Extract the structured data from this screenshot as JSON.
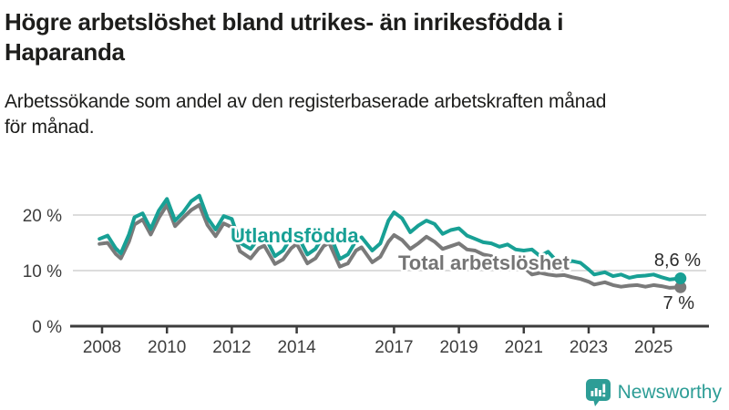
{
  "header": {
    "title": "Högre arbetslöshet bland utrikes- än inrikesfödda i Haparanda",
    "subtitle": "Arbetssökande som andel av den registerbaserade arbetskraften månad för månad."
  },
  "chart_data": {
    "type": "line",
    "title": "Högre arbetslöshet bland utrikes- än inrikesfödda i Haparanda",
    "subtitle": "Arbetssökande som andel av den registerbaserade arbetskraften månad för månad.",
    "grid": "horizontal",
    "legend": "inline-labels",
    "x_axis": {
      "tick_labels": [
        "2008",
        "2010",
        "2012",
        "2014",
        "2017",
        "2019",
        "2021",
        "2023",
        "2025"
      ],
      "tick_values": [
        2008,
        2010,
        2012,
        2014,
        2017,
        2019,
        2021,
        2023,
        2025
      ],
      "range": [
        2007.9,
        2026.3
      ]
    },
    "y_axis": {
      "tick_labels": [
        "0 %",
        "10 %",
        "20 %"
      ],
      "tick_values": [
        0,
        10,
        20
      ],
      "unit": "% av arbetskraften",
      "range": [
        0,
        27
      ]
    },
    "resolution": "monthly series, values read at ~quarterly anchors",
    "x": [
      2007.92,
      2008.17,
      2008.42,
      2008.58,
      2008.83,
      2009.0,
      2009.25,
      2009.5,
      2009.75,
      2010.0,
      2010.25,
      2010.5,
      2010.75,
      2011.0,
      2011.25,
      2011.5,
      2011.75,
      2012.0,
      2012.25,
      2012.58,
      2012.83,
      2013.0,
      2013.33,
      2013.58,
      2013.83,
      2014.0,
      2014.33,
      2014.58,
      2014.83,
      2015.0,
      2015.33,
      2015.58,
      2015.83,
      2016.0,
      2016.33,
      2016.58,
      2016.83,
      2017.0,
      2017.25,
      2017.5,
      2017.75,
      2018.0,
      2018.25,
      2018.5,
      2018.75,
      2019.0,
      2019.25,
      2019.5,
      2019.75,
      2020.0,
      2020.25,
      2020.5,
      2020.75,
      2021.0,
      2021.25,
      2021.5,
      2021.75,
      2022.0,
      2022.25,
      2022.5,
      2022.75,
      2023.0,
      2023.17,
      2023.5,
      2023.75,
      2024.0,
      2024.25,
      2024.5,
      2024.75,
      2025.0,
      2025.25,
      2025.5,
      2025.83
    ],
    "series": [
      {
        "name": "Utlandsfödda",
        "slug": "utlandsfodda",
        "color": "#18a095",
        "end_label": "8,6 %",
        "end_value": 8.6,
        "values": [
          15.7,
          16.3,
          14.0,
          13.1,
          16.5,
          19.6,
          20.3,
          17.5,
          20.8,
          22.9,
          19.0,
          20.5,
          22.5,
          23.5,
          19.5,
          17.4,
          19.8,
          19.3,
          15.0,
          13.9,
          15.8,
          16.4,
          12.6,
          13.6,
          15.9,
          16.6,
          12.9,
          13.9,
          16.3,
          16.9,
          12.1,
          12.9,
          15.4,
          16.0,
          13.6,
          14.9,
          19.0,
          20.5,
          19.4,
          16.9,
          18.1,
          19.0,
          18.4,
          16.6,
          17.3,
          17.6,
          16.3,
          15.7,
          15.1,
          14.9,
          14.3,
          14.7,
          13.8,
          13.6,
          13.8,
          12.6,
          13.4,
          11.8,
          11.6,
          11.7,
          11.4,
          10.2,
          9.3,
          9.7,
          9.0,
          9.3,
          8.7,
          9.0,
          9.1,
          9.3,
          8.8,
          8.4,
          8.6
        ]
      },
      {
        "name": "Total arbetslöshet",
        "slug": "total-arbetsloshet",
        "color": "#7a7a7a",
        "end_label": "7 %",
        "end_value": 7.0,
        "values": [
          14.8,
          15.0,
          13.0,
          12.2,
          15.2,
          18.3,
          19.2,
          16.5,
          19.5,
          21.8,
          18.0,
          19.5,
          20.9,
          21.8,
          18.2,
          16.2,
          18.5,
          17.8,
          13.5,
          12.2,
          14.0,
          14.5,
          11.2,
          12.0,
          14.0,
          14.8,
          11.3,
          12.2,
          14.4,
          15.0,
          10.7,
          11.3,
          13.6,
          14.2,
          11.5,
          12.5,
          15.2,
          16.4,
          15.5,
          13.9,
          14.9,
          16.1,
          15.2,
          13.9,
          14.4,
          14.9,
          13.8,
          13.6,
          12.9,
          12.6,
          11.6,
          11.2,
          10.9,
          10.6,
          9.3,
          9.6,
          9.3,
          9.1,
          9.2,
          8.8,
          8.5,
          8.0,
          7.5,
          7.9,
          7.4,
          7.1,
          7.3,
          7.4,
          7.1,
          7.4,
          7.2,
          6.9,
          7.0
        ]
      }
    ],
    "colors": {
      "grid": "#dcdcdc",
      "axis": "#3c3c3c",
      "tick_text": "#3d3d3d",
      "value_text": "#2b2b2b"
    }
  },
  "footer": {
    "brand": "Newsworthy",
    "brand_color": "#2d9d96",
    "icon": "bar-chart-speech-bubble-icon"
  }
}
